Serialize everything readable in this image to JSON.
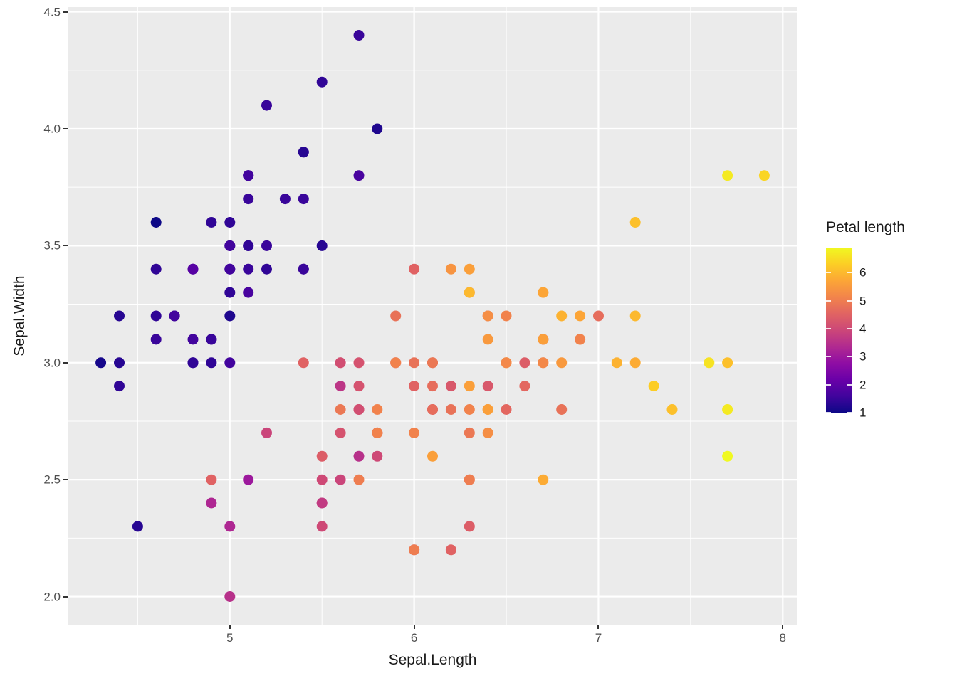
{
  "chart_data": {
    "type": "scatter",
    "title": "",
    "xlabel": "Sepal.Length",
    "ylabel": "Sepal.Width",
    "x_domain": [
      4.12,
      8.08
    ],
    "y_domain": [
      1.88,
      4.52
    ],
    "x_ticks": [
      {
        "v": 5,
        "label": "5"
      },
      {
        "v": 6,
        "label": "6"
      },
      {
        "v": 7,
        "label": "7"
      },
      {
        "v": 8,
        "label": "8"
      }
    ],
    "x_minor_ticks": [
      4.5,
      5.5,
      6.5,
      7.5
    ],
    "y_ticks": [
      {
        "v": 2.0,
        "label": "2.0"
      },
      {
        "v": 2.5,
        "label": "2.5"
      },
      {
        "v": 3.0,
        "label": "3.0"
      },
      {
        "v": 3.5,
        "label": "3.5"
      },
      {
        "v": 4.0,
        "label": "4.0"
      },
      {
        "v": 4.5,
        "label": "4.5"
      }
    ],
    "y_minor_ticks": [
      2.25,
      2.75,
      3.25,
      3.75,
      4.25
    ],
    "legend": {
      "title": "Petal length",
      "min": 1,
      "max": 6.9,
      "ticks": [
        6,
        5,
        4,
        3,
        2,
        1
      ]
    },
    "color_scale": {
      "name": "plasma",
      "stops": [
        [
          0.0,
          "#0d0887"
        ],
        [
          0.1,
          "#41049d"
        ],
        [
          0.2,
          "#6a00a8"
        ],
        [
          0.3,
          "#8f0da4"
        ],
        [
          0.4,
          "#b12a90"
        ],
        [
          0.5,
          "#cc4778"
        ],
        [
          0.6,
          "#e16462"
        ],
        [
          0.7,
          "#f2844b"
        ],
        [
          0.8,
          "#fca636"
        ],
        [
          0.9,
          "#fcce25"
        ],
        [
          1.0,
          "#f0f921"
        ]
      ]
    },
    "style": {
      "panel_bg": "#EBEBEB",
      "grid_color": "#FFFFFF",
      "axis_text_color": "#4D4D4D",
      "title_text_color": "#1A1A1A"
    },
    "point_fields": [
      "Sepal.Length",
      "Sepal.Width",
      "Petal.Length"
    ],
    "points": [
      [
        5.1,
        3.5,
        1.4
      ],
      [
        4.9,
        3.0,
        1.4
      ],
      [
        4.7,
        3.2,
        1.3
      ],
      [
        4.6,
        3.1,
        1.5
      ],
      [
        5.0,
        3.6,
        1.4
      ],
      [
        5.4,
        3.9,
        1.7
      ],
      [
        4.6,
        3.4,
        1.4
      ],
      [
        5.0,
        3.4,
        1.5
      ],
      [
        4.4,
        2.9,
        1.4
      ],
      [
        4.9,
        3.1,
        1.5
      ],
      [
        5.4,
        3.7,
        1.5
      ],
      [
        4.8,
        3.4,
        1.6
      ],
      [
        4.8,
        3.0,
        1.4
      ],
      [
        4.3,
        3.0,
        1.1
      ],
      [
        5.8,
        4.0,
        1.2
      ],
      [
        5.7,
        4.4,
        1.5
      ],
      [
        5.4,
        3.9,
        1.3
      ],
      [
        5.1,
        3.5,
        1.4
      ],
      [
        5.7,
        3.8,
        1.7
      ],
      [
        5.1,
        3.8,
        1.5
      ],
      [
        5.4,
        3.4,
        1.7
      ],
      [
        5.1,
        3.7,
        1.5
      ],
      [
        4.6,
        3.6,
        1.0
      ],
      [
        5.1,
        3.3,
        1.7
      ],
      [
        4.8,
        3.4,
        1.9
      ],
      [
        5.0,
        3.0,
        1.6
      ],
      [
        5.0,
        3.4,
        1.6
      ],
      [
        5.2,
        3.5,
        1.5
      ],
      [
        5.2,
        3.4,
        1.4
      ],
      [
        4.7,
        3.2,
        1.6
      ],
      [
        4.8,
        3.1,
        1.6
      ],
      [
        5.4,
        3.4,
        1.5
      ],
      [
        5.2,
        4.1,
        1.5
      ],
      [
        5.5,
        4.2,
        1.4
      ],
      [
        4.9,
        3.1,
        1.5
      ],
      [
        5.0,
        3.2,
        1.2
      ],
      [
        5.5,
        3.5,
        1.3
      ],
      [
        4.9,
        3.6,
        1.4
      ],
      [
        4.4,
        3.0,
        1.3
      ],
      [
        5.1,
        3.4,
        1.5
      ],
      [
        5.0,
        3.5,
        1.3
      ],
      [
        4.5,
        2.3,
        1.3
      ],
      [
        4.4,
        3.2,
        1.3
      ],
      [
        5.0,
        3.5,
        1.6
      ],
      [
        5.1,
        3.8,
        1.9
      ],
      [
        4.8,
        3.0,
        1.4
      ],
      [
        5.1,
        3.8,
        1.6
      ],
      [
        4.6,
        3.2,
        1.4
      ],
      [
        5.3,
        3.7,
        1.5
      ],
      [
        5.0,
        3.3,
        1.4
      ],
      [
        7.0,
        3.2,
        4.7
      ],
      [
        6.4,
        3.2,
        4.5
      ],
      [
        6.9,
        3.1,
        4.9
      ],
      [
        5.5,
        2.3,
        4.0
      ],
      [
        6.5,
        2.8,
        4.6
      ],
      [
        5.7,
        2.8,
        4.5
      ],
      [
        6.3,
        3.3,
        4.7
      ],
      [
        4.9,
        2.4,
        3.3
      ],
      [
        6.6,
        2.9,
        4.6
      ],
      [
        5.2,
        2.7,
        3.9
      ],
      [
        5.0,
        2.0,
        3.5
      ],
      [
        5.9,
        3.0,
        4.2
      ],
      [
        6.0,
        2.2,
        4.0
      ],
      [
        6.1,
        2.9,
        4.7
      ],
      [
        5.6,
        2.9,
        3.6
      ],
      [
        6.7,
        3.1,
        4.4
      ],
      [
        5.6,
        3.0,
        4.5
      ],
      [
        5.8,
        2.7,
        4.1
      ],
      [
        6.2,
        2.2,
        4.5
      ],
      [
        5.6,
        2.5,
        3.9
      ],
      [
        5.9,
        3.2,
        4.8
      ],
      [
        6.1,
        2.8,
        4.0
      ],
      [
        6.3,
        2.5,
        4.9
      ],
      [
        6.1,
        2.8,
        4.7
      ],
      [
        6.4,
        2.9,
        4.3
      ],
      [
        6.6,
        3.0,
        4.4
      ],
      [
        6.8,
        2.8,
        4.8
      ],
      [
        6.7,
        3.0,
        5.0
      ],
      [
        6.0,
        2.9,
        4.5
      ],
      [
        5.7,
        2.6,
        3.5
      ],
      [
        5.5,
        2.4,
        3.8
      ],
      [
        5.5,
        2.4,
        3.7
      ],
      [
        5.8,
        2.7,
        3.9
      ],
      [
        6.0,
        2.7,
        5.1
      ],
      [
        5.4,
        3.0,
        4.5
      ],
      [
        6.0,
        3.4,
        4.5
      ],
      [
        6.7,
        3.1,
        4.7
      ],
      [
        6.3,
        2.3,
        4.4
      ],
      [
        5.6,
        3.0,
        4.1
      ],
      [
        5.5,
        2.5,
        4.0
      ],
      [
        5.5,
        2.6,
        4.4
      ],
      [
        6.1,
        3.0,
        4.6
      ],
      [
        5.8,
        2.6,
        4.0
      ],
      [
        5.0,
        2.3,
        3.3
      ],
      [
        5.6,
        2.7,
        4.2
      ],
      [
        5.7,
        3.0,
        4.2
      ],
      [
        5.7,
        2.9,
        4.2
      ],
      [
        6.2,
        2.9,
        4.3
      ],
      [
        5.1,
        2.5,
        3.0
      ],
      [
        5.7,
        2.8,
        4.1
      ],
      [
        6.3,
        3.3,
        6.0
      ],
      [
        5.8,
        2.7,
        5.1
      ],
      [
        7.1,
        3.0,
        5.9
      ],
      [
        6.3,
        2.9,
        5.6
      ],
      [
        6.5,
        3.0,
        5.8
      ],
      [
        7.6,
        3.0,
        6.6
      ],
      [
        4.9,
        2.5,
        4.5
      ],
      [
        7.3,
        2.9,
        6.3
      ],
      [
        6.7,
        2.5,
        5.8
      ],
      [
        7.2,
        3.6,
        6.1
      ],
      [
        6.5,
        3.2,
        5.1
      ],
      [
        6.4,
        2.7,
        5.3
      ],
      [
        6.8,
        3.0,
        5.5
      ],
      [
        5.7,
        2.5,
        5.0
      ],
      [
        5.8,
        2.8,
        5.1
      ],
      [
        6.4,
        3.2,
        5.3
      ],
      [
        6.5,
        3.0,
        5.5
      ],
      [
        7.7,
        3.8,
        6.7
      ],
      [
        7.7,
        2.6,
        6.9
      ],
      [
        6.0,
        2.2,
        5.0
      ],
      [
        6.9,
        3.2,
        5.7
      ],
      [
        5.6,
        2.8,
        4.9
      ],
      [
        7.7,
        2.8,
        6.7
      ],
      [
        6.3,
        2.7,
        4.9
      ],
      [
        6.7,
        3.3,
        5.7
      ],
      [
        7.2,
        3.2,
        6.0
      ],
      [
        6.2,
        2.8,
        4.8
      ],
      [
        6.1,
        3.0,
        4.9
      ],
      [
        6.4,
        2.8,
        5.6
      ],
      [
        7.2,
        3.0,
        5.8
      ],
      [
        7.4,
        2.8,
        6.1
      ],
      [
        7.9,
        3.8,
        6.4
      ],
      [
        6.4,
        2.8,
        5.6
      ],
      [
        6.3,
        2.8,
        5.1
      ],
      [
        6.1,
        2.6,
        5.6
      ],
      [
        7.7,
        3.0,
        6.1
      ],
      [
        6.3,
        3.4,
        5.6
      ],
      [
        6.4,
        3.1,
        5.5
      ],
      [
        6.0,
        3.0,
        4.8
      ],
      [
        6.9,
        3.1,
        5.4
      ],
      [
        6.7,
        3.1,
        5.6
      ],
      [
        6.9,
        3.1,
        5.1
      ],
      [
        5.8,
        2.7,
        5.1
      ],
      [
        6.8,
        3.2,
        5.9
      ],
      [
        6.7,
        3.3,
        5.7
      ],
      [
        6.7,
        3.0,
        5.2
      ],
      [
        6.3,
        2.5,
        5.0
      ],
      [
        6.5,
        3.0,
        5.2
      ],
      [
        6.2,
        3.4,
        5.4
      ],
      [
        5.9,
        3.0,
        5.1
      ]
    ]
  }
}
